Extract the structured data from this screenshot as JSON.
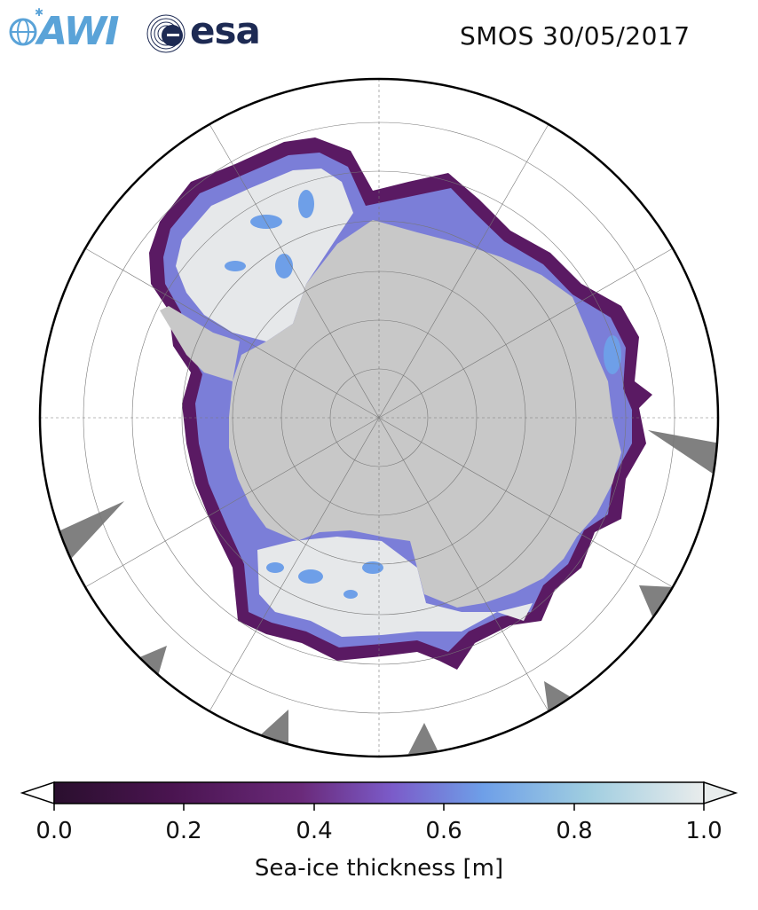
{
  "header": {
    "logo_awi": "AWI",
    "logo_esa": "esa",
    "product_date": "SMOS 30/05/2017"
  },
  "map": {
    "projection": "south-polar-stereographic",
    "ocean_color": "#ffffff",
    "land_color": "#c8c8c8",
    "no_data_color": "#808080",
    "grid": true
  },
  "colorbar": {
    "label": "Sea-ice thickness [m]",
    "min": 0.0,
    "max": 1.0,
    "ticks": [
      "0.0",
      "0.2",
      "0.4",
      "0.6",
      "0.8",
      "1.0"
    ],
    "colors": [
      "#2a0f2e",
      "#4a1450",
      "#6a2a7a",
      "#7b5bc9",
      "#6e9fe8",
      "#9fcde0",
      "#e9ecec"
    ],
    "extend": "both",
    "extend_low_color": "#ffffff",
    "extend_high_color": "#e8ecec"
  }
}
